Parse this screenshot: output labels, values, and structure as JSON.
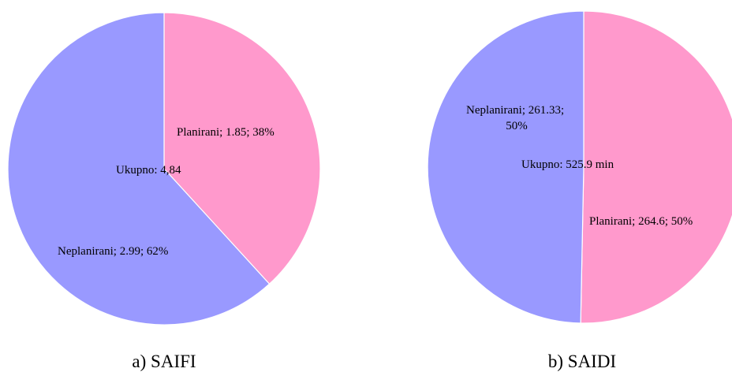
{
  "chart_data": [
    {
      "type": "pie",
      "caption": "a) SAIFI",
      "center_label": "Ukupno: 4,84",
      "start_angle_deg": 0,
      "direction": "clockwise",
      "slices": [
        {
          "name": "Planirani",
          "value": 1.85,
          "percent": 38,
          "color": "#ff99cc",
          "label_lines": [
            "Planirani; 1.85; 38%"
          ]
        },
        {
          "name": "Neplanirani",
          "value": 2.99,
          "percent": 62,
          "color": "#9999ff",
          "label_lines": [
            "Neplanirani; 2.99; 62%"
          ]
        }
      ]
    },
    {
      "type": "pie",
      "caption": "b) SAIDI",
      "center_label": "Ukupno: 525.9 min",
      "start_angle_deg": 0,
      "direction": "clockwise",
      "slices": [
        {
          "name": "Planirani",
          "value": 264.6,
          "percent": 50,
          "color": "#ff99cc",
          "label_lines": [
            "Planirani; 264.6; 50%"
          ]
        },
        {
          "name": "Neplanirani",
          "value": 261.33,
          "percent": 50,
          "color": "#9999ff",
          "label_lines": [
            "Neplanirani; 261.33;",
            "50%"
          ]
        }
      ]
    }
  ]
}
